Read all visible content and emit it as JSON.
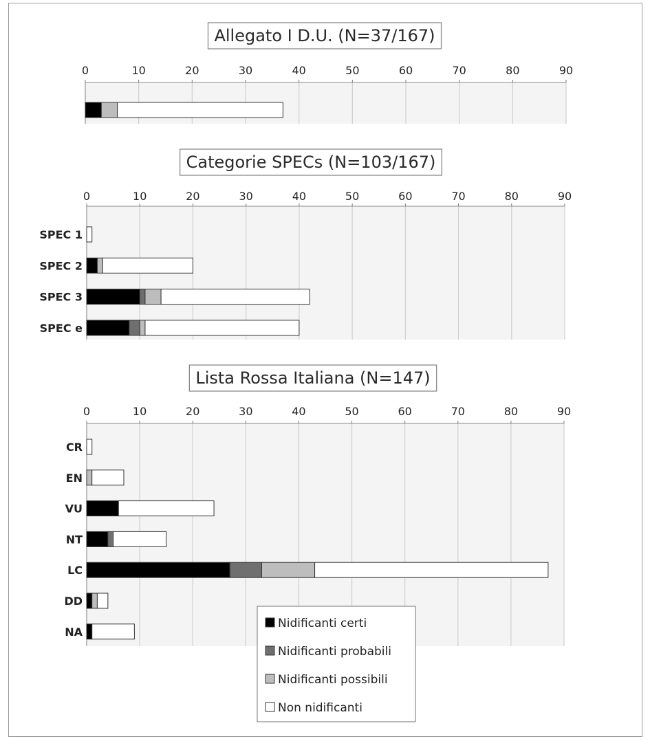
{
  "colors": {
    "certi": "#000000",
    "probabili": "#6f6f6f",
    "possibili": "#bdbdbd",
    "non": "#ffffff",
    "plot_bg": "#f4f4f4",
    "grid": "#cfcfcf"
  },
  "legend": {
    "placement": "bottom-center",
    "entries": [
      {
        "key": "certi",
        "label": "Nidificanti certi"
      },
      {
        "key": "probabili",
        "label": "Nidificanti probabili"
      },
      {
        "key": "possibili",
        "label": "Nidificanti possibili"
      },
      {
        "key": "non",
        "label": "Non nidificanti"
      }
    ]
  },
  "chart_data": [
    {
      "type": "bar",
      "stacked": true,
      "orientation": "horizontal",
      "title": "Allegato I D.U. (N=37/167)",
      "xlim": [
        0,
        90
      ],
      "xticks": [
        "0",
        "10",
        "20",
        "30",
        "40",
        "50",
        "60",
        "70",
        "80",
        "90"
      ],
      "categories": [
        ""
      ],
      "series": [
        {
          "name": "Nidificanti certi",
          "key": "certi",
          "values": [
            3
          ]
        },
        {
          "name": "Nidificanti probabili",
          "key": "probabili",
          "values": [
            0
          ]
        },
        {
          "name": "Nidificanti possibili",
          "key": "possibili",
          "values": [
            3
          ]
        },
        {
          "name": "Non nidificanti",
          "key": "non",
          "values": [
            31
          ]
        }
      ]
    },
    {
      "type": "bar",
      "stacked": true,
      "orientation": "horizontal",
      "title": "Categorie SPECs (N=103/167)",
      "xlim": [
        0,
        90
      ],
      "xticks": [
        "0",
        "10",
        "20",
        "30",
        "40",
        "50",
        "60",
        "70",
        "80",
        "90"
      ],
      "categories": [
        "SPEC 1",
        "SPEC 2",
        "SPEC 3",
        "SPEC e"
      ],
      "series": [
        {
          "name": "Nidificanti certi",
          "key": "certi",
          "values": [
            0,
            2,
            10,
            8
          ]
        },
        {
          "name": "Nidificanti probabili",
          "key": "probabili",
          "values": [
            0,
            0,
            1,
            2
          ]
        },
        {
          "name": "Nidificanti possibili",
          "key": "possibili",
          "values": [
            0,
            1,
            3,
            1
          ]
        },
        {
          "name": "Non nidificanti",
          "key": "non",
          "values": [
            1,
            17,
            28,
            29
          ]
        }
      ]
    },
    {
      "type": "bar",
      "stacked": true,
      "orientation": "horizontal",
      "title": "Lista Rossa Italiana (N=147)",
      "xlim": [
        0,
        90
      ],
      "xticks": [
        "0",
        "10",
        "20",
        "30",
        "40",
        "50",
        "60",
        "70",
        "80",
        "90"
      ],
      "categories": [
        "CR",
        "EN",
        "VU",
        "NT",
        "LC",
        "DD",
        "NA"
      ],
      "series": [
        {
          "name": "Nidificanti certi",
          "key": "certi",
          "values": [
            0,
            0,
            6,
            4,
            27,
            1,
            1
          ]
        },
        {
          "name": "Nidificanti probabili",
          "key": "probabili",
          "values": [
            0,
            0,
            0,
            1,
            6,
            0,
            0
          ]
        },
        {
          "name": "Nidificanti possibili",
          "key": "possibili",
          "values": [
            0,
            1,
            0,
            0,
            10,
            1,
            0
          ]
        },
        {
          "name": "Non nidificanti",
          "key": "non",
          "values": [
            1,
            6,
            18,
            10,
            44,
            2,
            8
          ]
        }
      ]
    }
  ]
}
